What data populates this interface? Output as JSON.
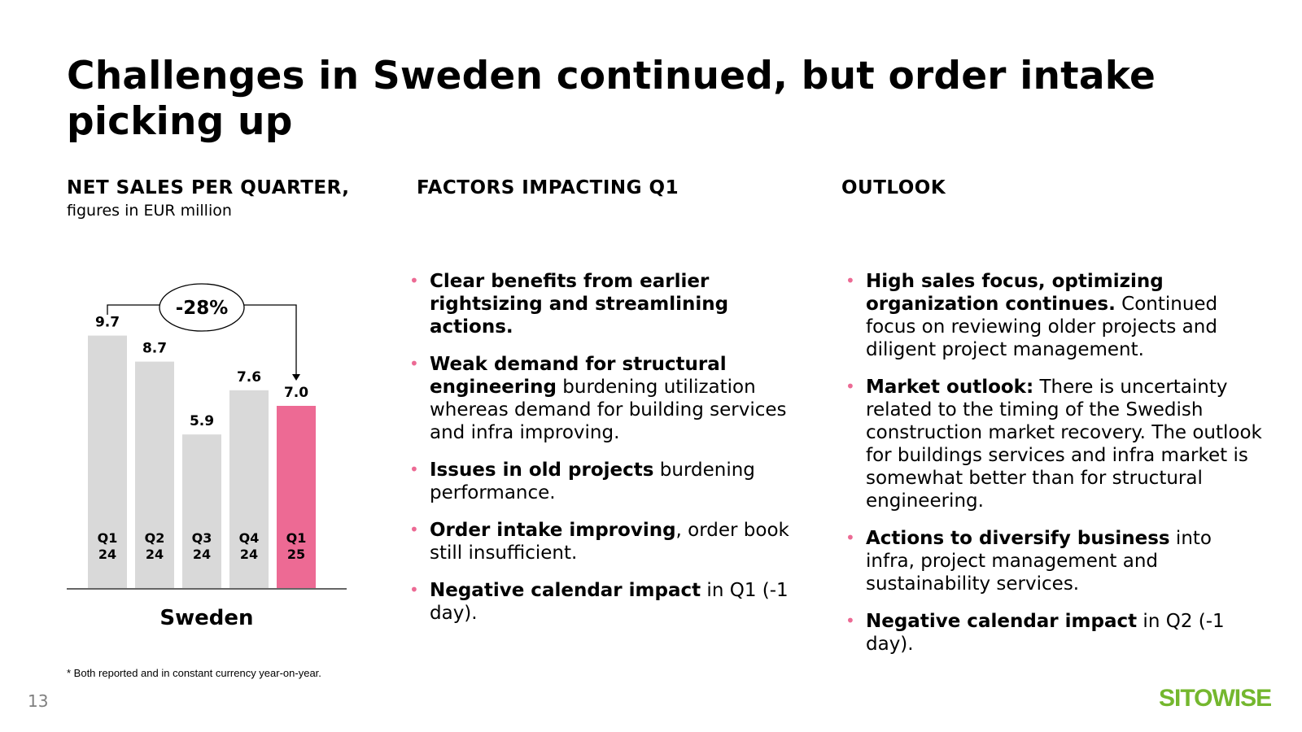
{
  "slide": {
    "title": "Challenges in Sweden continued, but order intake picking up",
    "page_number": "13",
    "logo_text": "SITOWISE",
    "footnote": "* Both reported and in constant currency year-on-year."
  },
  "net_sales": {
    "heading": "NET SALES PER QUARTER,",
    "subheading": "figures in EUR million"
  },
  "factors": {
    "heading": "FACTORS IMPACTING Q1",
    "items": [
      {
        "bold": "Clear benefits from earlier rightsizing and streamlining actions.",
        "text": ""
      },
      {
        "bold": "Weak demand for structural engineering",
        "text": " burdening utilization whereas demand for building services and infra improving."
      },
      {
        "bold": "Issues in old projects",
        "text": " burdening performance."
      },
      {
        "bold": "Order intake improving",
        "text": ", order book still insufficient."
      },
      {
        "bold": "Negative calendar impact",
        "text": " in Q1 (-1 day)."
      }
    ]
  },
  "outlook": {
    "heading": "OUTLOOK",
    "items": [
      {
        "bold": "High sales focus, optimizing organization continues.",
        "text": " Continued focus on reviewing older projects and diligent project management."
      },
      {
        "bold": "Market outlook:",
        "text": " There is uncertainty related to the timing of the Swedish construction market recovery. The outlook for buildings services and infra market is somewhat better than for structural engineering."
      },
      {
        "bold": "Actions to diversify business",
        "text": " into infra, project management and sustainability services."
      },
      {
        "bold": "Negative calendar impact",
        "text": " in Q2 (-1 day)."
      }
    ]
  },
  "chart_data": {
    "type": "bar",
    "categories": [
      "Q1\n24",
      "Q2\n24",
      "Q3\n24",
      "Q4\n24",
      "Q1\n25"
    ],
    "values": [
      9.7,
      8.7,
      5.9,
      7.6,
      7.0
    ],
    "value_labels": [
      "9.7",
      "8.7",
      "5.9",
      "7.6",
      "7.0"
    ],
    "xlabel": "Sweden",
    "ylim": [
      0,
      10
    ],
    "highlight_index": 4,
    "change_label": "-28%",
    "bar_color": "#d9d9d9",
    "highlight_color": "#ed6a94",
    "grid": false
  }
}
